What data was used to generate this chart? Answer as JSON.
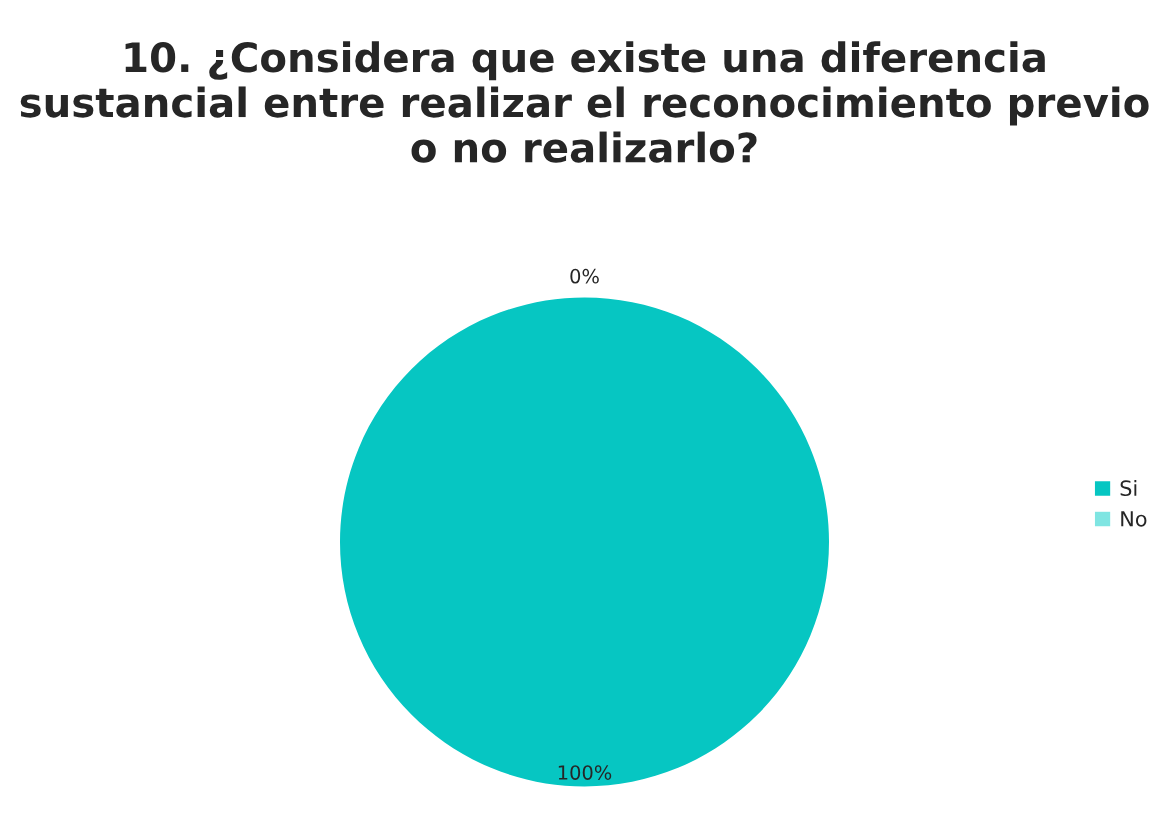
{
  "chart_data": {
    "type": "pie",
    "title": "10. ¿Considera que existe una diferencia sustancial entre realizar el reconocimiento previo o no realizarlo?",
    "categories": [
      "Si",
      "No"
    ],
    "values": [
      100,
      0
    ],
    "colors": [
      "#06c6c2",
      "#7fe5e2"
    ],
    "value_labels": [
      "100%",
      "0%"
    ],
    "legend": "right"
  }
}
